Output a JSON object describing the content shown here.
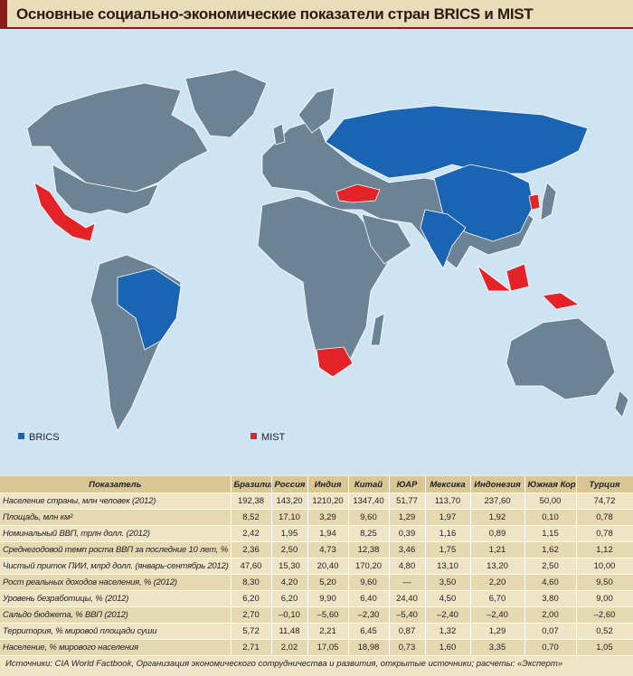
{
  "title": "Основные социально-экономические показатели стран BRICS и MIST",
  "legend": [
    {
      "label": "BRICS",
      "color": "#1a64b4"
    },
    {
      "label": "MIST",
      "color": "#e42328"
    }
  ],
  "table": {
    "header": [
      "Показатель",
      "Бразилия",
      "Россия",
      "Индия",
      "Китай",
      "ЮАР",
      "Мексика",
      "Индонезия",
      "Южная Корея",
      "Турция"
    ],
    "rows": [
      [
        "Население страны, млн человек (2012)",
        "192,38",
        "143,20",
        "1210,20",
        "1347,40",
        "51,77",
        "113,70",
        "237,60",
        "50,00",
        "74,72"
      ],
      [
        "Площадь, млн км²",
        "8,52",
        "17,10",
        "3,29",
        "9,60",
        "1,29",
        "1,97",
        "1,92",
        "0,10",
        "0,78"
      ],
      [
        "Номинальный ВВП, трлн долл. (2012)",
        "2,42",
        "1,95",
        "1,94",
        "8,25",
        "0,39",
        "1,16",
        "0,89",
        "1,15",
        "0,78"
      ],
      [
        "Среднегодовой темп роста ВВП за последние 10 лет, %",
        "2,36",
        "2,50",
        "4,73",
        "12,38",
        "3,46",
        "1,75",
        "1,21",
        "1,62",
        "1,12"
      ],
      [
        "Чистый приток ПИИ, млрд долл. (январь-сентябрь 2012)",
        "47,60",
        "15,30",
        "20,40",
        "170,20",
        "4,80",
        "13,10",
        "13,20",
        "2,50",
        "10,00"
      ],
      [
        "Рост реальных доходов населения, % (2012)",
        "8,30",
        "4,20",
        "5,20",
        "9,60",
        "—",
        "3,50",
        "2,20",
        "4,60",
        "9,50"
      ],
      [
        "Уровень безработицы, % (2012)",
        "6,20",
        "6,20",
        "9,90",
        "6,40",
        "24,40",
        "4,50",
        "6,70",
        "3,80",
        "9,00"
      ],
      [
        "Сальдо бюджета, % ВВП (2012)",
        "2,70",
        "–0,10",
        "–5,60",
        "–2,30",
        "–5,40",
        "–2,40",
        "–2,40",
        "2,00",
        "–2,60"
      ],
      [
        "Территория, % мировой площади суши",
        "5,72",
        "11,48",
        "2,21",
        "6,45",
        "0,87",
        "1,32",
        "1,29",
        "0,07",
        "0,52"
      ],
      [
        "Население, % мирового населения",
        "2,71",
        "2,02",
        "17,05",
        "18,98",
        "0,73",
        "1,60",
        "3,35",
        "0,70",
        "1,05"
      ]
    ]
  },
  "source": "Источники: CIA World Factbook, Организация экономического сотрудничества и развития, открытые источники; расчеты: «Эксперт»"
}
